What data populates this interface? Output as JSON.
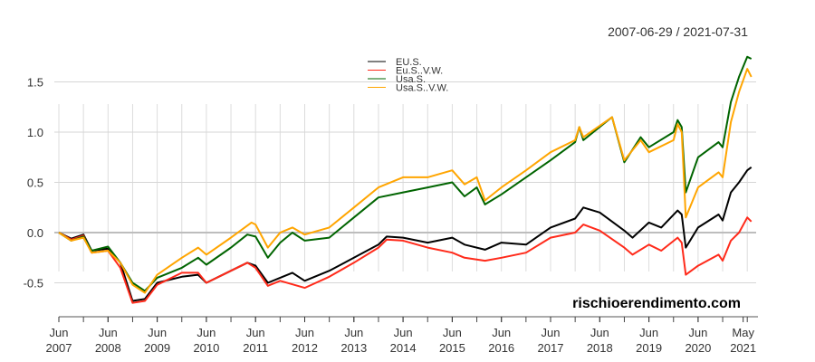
{
  "chart_data": {
    "type": "line",
    "date_range": "2007-06-29 / 2021-07-31",
    "watermark": "rischioerendimento.com",
    "ylim": [
      -0.8,
      1.8
    ],
    "yticks": [
      "1.5",
      "1.0",
      "0.5",
      "0.0",
      "-0.5"
    ],
    "ytick_values": [
      1.5,
      1.0,
      0.5,
      0.0,
      -0.5
    ],
    "xticks": [
      {
        "m": "Jun",
        "y": "2007",
        "d": "2007-06"
      },
      {
        "m": "Jun",
        "y": "2008",
        "d": "2008-06"
      },
      {
        "m": "Jun",
        "y": "2009",
        "d": "2009-06"
      },
      {
        "m": "Jun",
        "y": "2010",
        "d": "2010-06"
      },
      {
        "m": "Jun",
        "y": "2011",
        "d": "2011-06"
      },
      {
        "m": "Jun",
        "y": "2012",
        "d": "2012-06"
      },
      {
        "m": "Jun",
        "y": "2013",
        "d": "2013-06"
      },
      {
        "m": "Jun",
        "y": "2014",
        "d": "2014-06"
      },
      {
        "m": "Jun",
        "y": "2015",
        "d": "2015-06"
      },
      {
        "m": "Jun",
        "y": "2016",
        "d": "2016-06"
      },
      {
        "m": "Jun",
        "y": "2017",
        "d": "2017-06"
      },
      {
        "m": "Jun",
        "y": "2018",
        "d": "2018-06"
      },
      {
        "m": "Jun",
        "y": "2019",
        "d": "2019-06"
      },
      {
        "m": "Jun",
        "y": "2020",
        "d": "2020-06"
      },
      {
        "m": "May",
        "y": "2021",
        "d": "2021-05"
      }
    ],
    "grid": true,
    "legend_position": "top-center",
    "series": [
      {
        "name": "EU.S.",
        "color": "#000000",
        "points": [
          [
            "2007-06",
            0
          ],
          [
            "2007-09",
            -0.06
          ],
          [
            "2007-12",
            -0.02
          ],
          [
            "2008-02",
            -0.18
          ],
          [
            "2008-06",
            -0.16
          ],
          [
            "2008-09",
            -0.3
          ],
          [
            "2008-12",
            -0.68
          ],
          [
            "2009-03",
            -0.66
          ],
          [
            "2009-06",
            -0.5
          ],
          [
            "2009-12",
            -0.44
          ],
          [
            "2010-04",
            -0.42
          ],
          [
            "2010-06",
            -0.5
          ],
          [
            "2010-12",
            -0.38
          ],
          [
            "2011-04",
            -0.3
          ],
          [
            "2011-06",
            -0.33
          ],
          [
            "2011-09",
            -0.5
          ],
          [
            "2011-12",
            -0.45
          ],
          [
            "2012-03",
            -0.4
          ],
          [
            "2012-06",
            -0.48
          ],
          [
            "2012-12",
            -0.38
          ],
          [
            "2013-06",
            -0.25
          ],
          [
            "2013-12",
            -0.12
          ],
          [
            "2014-02",
            -0.04
          ],
          [
            "2014-06",
            -0.05
          ],
          [
            "2014-12",
            -0.1
          ],
          [
            "2015-06",
            -0.05
          ],
          [
            "2015-09",
            -0.12
          ],
          [
            "2016-02",
            -0.17
          ],
          [
            "2016-06",
            -0.1
          ],
          [
            "2016-12",
            -0.12
          ],
          [
            "2017-06",
            0.05
          ],
          [
            "2017-12",
            0.14
          ],
          [
            "2018-02",
            0.25
          ],
          [
            "2018-06",
            0.2
          ],
          [
            "2018-12",
            0.02
          ],
          [
            "2019-02",
            -0.05
          ],
          [
            "2019-06",
            0.1
          ],
          [
            "2019-09",
            0.05
          ],
          [
            "2020-01",
            0.22
          ],
          [
            "2020-02",
            0.18
          ],
          [
            "2020-03",
            -0.15
          ],
          [
            "2020-06",
            0.05
          ],
          [
            "2020-11",
            0.18
          ],
          [
            "2020-12",
            0.12
          ],
          [
            "2021-02",
            0.4
          ],
          [
            "2021-04",
            0.5
          ],
          [
            "2021-06",
            0.62
          ],
          [
            "2021-07",
            0.65
          ]
        ]
      },
      {
        "name": "Eu.S..V.W.",
        "color": "#ff2a1a",
        "points": [
          [
            "2007-06",
            0
          ],
          [
            "2007-09",
            -0.07
          ],
          [
            "2007-12",
            -0.03
          ],
          [
            "2008-02",
            -0.2
          ],
          [
            "2008-06",
            -0.18
          ],
          [
            "2008-09",
            -0.35
          ],
          [
            "2008-12",
            -0.7
          ],
          [
            "2009-03",
            -0.68
          ],
          [
            "2009-06",
            -0.52
          ],
          [
            "2009-12",
            -0.4
          ],
          [
            "2010-04",
            -0.4
          ],
          [
            "2010-06",
            -0.5
          ],
          [
            "2010-12",
            -0.38
          ],
          [
            "2011-04",
            -0.3
          ],
          [
            "2011-06",
            -0.35
          ],
          [
            "2011-09",
            -0.53
          ],
          [
            "2011-12",
            -0.48
          ],
          [
            "2012-06",
            -0.55
          ],
          [
            "2012-12",
            -0.44
          ],
          [
            "2013-06",
            -0.3
          ],
          [
            "2013-12",
            -0.15
          ],
          [
            "2014-02",
            -0.07
          ],
          [
            "2014-06",
            -0.08
          ],
          [
            "2014-12",
            -0.15
          ],
          [
            "2015-06",
            -0.2
          ],
          [
            "2015-09",
            -0.25
          ],
          [
            "2016-02",
            -0.28
          ],
          [
            "2016-06",
            -0.25
          ],
          [
            "2016-12",
            -0.2
          ],
          [
            "2017-06",
            -0.05
          ],
          [
            "2017-12",
            0.0
          ],
          [
            "2018-02",
            0.08
          ],
          [
            "2018-06",
            0.02
          ],
          [
            "2018-12",
            -0.15
          ],
          [
            "2019-02",
            -0.22
          ],
          [
            "2019-06",
            -0.12
          ],
          [
            "2019-09",
            -0.18
          ],
          [
            "2020-01",
            -0.05
          ],
          [
            "2020-02",
            -0.1
          ],
          [
            "2020-03",
            -0.42
          ],
          [
            "2020-06",
            -0.33
          ],
          [
            "2020-11",
            -0.22
          ],
          [
            "2020-12",
            -0.28
          ],
          [
            "2021-02",
            -0.08
          ],
          [
            "2021-04",
            0.0
          ],
          [
            "2021-06",
            0.15
          ],
          [
            "2021-07",
            0.11
          ]
        ]
      },
      {
        "name": "Usa.S.",
        "color": "#006400",
        "points": [
          [
            "2007-06",
            0
          ],
          [
            "2007-09",
            -0.08
          ],
          [
            "2007-12",
            -0.04
          ],
          [
            "2008-02",
            -0.18
          ],
          [
            "2008-06",
            -0.14
          ],
          [
            "2008-09",
            -0.3
          ],
          [
            "2008-12",
            -0.5
          ],
          [
            "2009-03",
            -0.58
          ],
          [
            "2009-06",
            -0.45
          ],
          [
            "2009-12",
            -0.35
          ],
          [
            "2010-04",
            -0.25
          ],
          [
            "2010-06",
            -0.32
          ],
          [
            "2010-12",
            -0.15
          ],
          [
            "2011-04",
            -0.02
          ],
          [
            "2011-06",
            -0.04
          ],
          [
            "2011-09",
            -0.25
          ],
          [
            "2011-12",
            -0.1
          ],
          [
            "2012-03",
            0.0
          ],
          [
            "2012-06",
            -0.08
          ],
          [
            "2012-12",
            -0.05
          ],
          [
            "2013-06",
            0.15
          ],
          [
            "2013-12",
            0.35
          ],
          [
            "2014-06",
            0.4
          ],
          [
            "2014-12",
            0.45
          ],
          [
            "2015-06",
            0.5
          ],
          [
            "2015-09",
            0.36
          ],
          [
            "2015-12",
            0.45
          ],
          [
            "2016-02",
            0.28
          ],
          [
            "2016-06",
            0.38
          ],
          [
            "2016-12",
            0.55
          ],
          [
            "2017-06",
            0.72
          ],
          [
            "2017-12",
            0.9
          ],
          [
            "2018-01",
            1.05
          ],
          [
            "2018-02",
            0.92
          ],
          [
            "2018-09",
            1.15
          ],
          [
            "2018-12",
            0.7
          ],
          [
            "2019-04",
            0.95
          ],
          [
            "2019-06",
            0.85
          ],
          [
            "2019-12",
            1.0
          ],
          [
            "2020-01",
            1.12
          ],
          [
            "2020-02",
            1.05
          ],
          [
            "2020-03",
            0.4
          ],
          [
            "2020-06",
            0.75
          ],
          [
            "2020-11",
            0.9
          ],
          [
            "2020-12",
            0.85
          ],
          [
            "2021-02",
            1.3
          ],
          [
            "2021-04",
            1.55
          ],
          [
            "2021-06",
            1.75
          ],
          [
            "2021-07",
            1.73
          ]
        ]
      },
      {
        "name": "Usa.S..V.W.",
        "color": "#ffa500",
        "points": [
          [
            "2007-06",
            0
          ],
          [
            "2007-09",
            -0.08
          ],
          [
            "2007-12",
            -0.05
          ],
          [
            "2008-02",
            -0.2
          ],
          [
            "2008-06",
            -0.18
          ],
          [
            "2008-09",
            -0.3
          ],
          [
            "2008-12",
            -0.52
          ],
          [
            "2009-03",
            -0.6
          ],
          [
            "2009-06",
            -0.42
          ],
          [
            "2009-12",
            -0.25
          ],
          [
            "2010-04",
            -0.15
          ],
          [
            "2010-06",
            -0.22
          ],
          [
            "2010-12",
            -0.05
          ],
          [
            "2011-05",
            0.1
          ],
          [
            "2011-06",
            0.08
          ],
          [
            "2011-09",
            -0.15
          ],
          [
            "2011-12",
            0.0
          ],
          [
            "2012-03",
            0.05
          ],
          [
            "2012-06",
            -0.02
          ],
          [
            "2012-12",
            0.05
          ],
          [
            "2013-06",
            0.25
          ],
          [
            "2013-12",
            0.45
          ],
          [
            "2014-06",
            0.55
          ],
          [
            "2014-12",
            0.55
          ],
          [
            "2015-06",
            0.62
          ],
          [
            "2015-09",
            0.48
          ],
          [
            "2015-12",
            0.55
          ],
          [
            "2016-02",
            0.32
          ],
          [
            "2016-06",
            0.45
          ],
          [
            "2016-12",
            0.62
          ],
          [
            "2017-06",
            0.8
          ],
          [
            "2017-12",
            0.92
          ],
          [
            "2018-01",
            1.05
          ],
          [
            "2018-02",
            0.95
          ],
          [
            "2018-09",
            1.15
          ],
          [
            "2018-12",
            0.72
          ],
          [
            "2019-04",
            0.92
          ],
          [
            "2019-06",
            0.8
          ],
          [
            "2019-12",
            0.92
          ],
          [
            "2020-01",
            1.08
          ],
          [
            "2020-02",
            1.0
          ],
          [
            "2020-03",
            0.15
          ],
          [
            "2020-06",
            0.45
          ],
          [
            "2020-11",
            0.6
          ],
          [
            "2020-12",
            0.55
          ],
          [
            "2021-02",
            1.1
          ],
          [
            "2021-04",
            1.4
          ],
          [
            "2021-06",
            1.63
          ],
          [
            "2021-07",
            1.55
          ]
        ]
      }
    ]
  }
}
